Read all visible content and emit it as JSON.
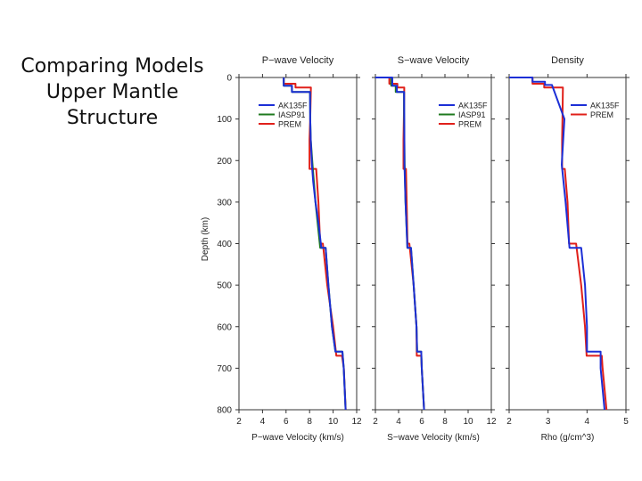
{
  "slide": {
    "title_lines": [
      "Comparing Models",
      "Upper Mantle",
      "Structure"
    ]
  },
  "colors": {
    "AK135F": "#1c2fd6",
    "IASP91": "#1f7a1f",
    "PREM": "#e0201a"
  },
  "chart_data": [
    {
      "type": "line",
      "title": "P−wave Velocity",
      "xlabel": "P−wave Velocity (km/s)",
      "ylabel": "Depth (km)",
      "xlim": [
        2,
        12
      ],
      "ylim": [
        800,
        0
      ],
      "x_ticks": [
        "2",
        "4",
        "6",
        "8",
        "10",
        "12"
      ],
      "y_ticks": [
        "0",
        "100",
        "200",
        "300",
        "400",
        "500",
        "600",
        "700",
        "800"
      ],
      "legend_position": "top-left",
      "series": [
        {
          "name": "AK135F",
          "color_key": "AK135F",
          "points": [
            [
              5.8,
              0
            ],
            [
              5.8,
              20
            ],
            [
              6.5,
              20
            ],
            [
              6.5,
              35
            ],
            [
              8.04,
              35
            ],
            [
              8.05,
              100
            ],
            [
              8.1,
              150
            ],
            [
              8.2,
              210
            ],
            [
              8.3,
              250
            ],
            [
              8.5,
              300
            ],
            [
              8.75,
              350
            ],
            [
              9.0,
              410
            ],
            [
              9.36,
              410
            ],
            [
              9.6,
              500
            ],
            [
              9.9,
              600
            ],
            [
              10.2,
              660
            ],
            [
              10.79,
              660
            ],
            [
              10.9,
              700
            ],
            [
              11.06,
              800
            ]
          ]
        },
        {
          "name": "IASP91",
          "color_key": "IASP91",
          "points": [
            [
              5.8,
              0
            ],
            [
              5.8,
              20
            ],
            [
              6.5,
              20
            ],
            [
              6.5,
              35
            ],
            [
              8.04,
              35
            ],
            [
              8.05,
              100
            ],
            [
              8.1,
              150
            ],
            [
              8.25,
              210
            ],
            [
              8.5,
              300
            ],
            [
              8.9,
              410
            ],
            [
              9.36,
              410
            ],
            [
              9.6,
              500
            ],
            [
              9.9,
              600
            ],
            [
              10.2,
              660
            ],
            [
              10.79,
              660
            ],
            [
              10.9,
              700
            ],
            [
              11.06,
              800
            ]
          ]
        },
        {
          "name": "PREM",
          "color_key": "PREM",
          "points": [
            [
              5.8,
              0
            ],
            [
              5.8,
              15
            ],
            [
              6.8,
              15
            ],
            [
              6.8,
              24
            ],
            [
              8.11,
              24
            ],
            [
              8.05,
              100
            ],
            [
              7.99,
              150
            ],
            [
              7.99,
              220
            ],
            [
              8.56,
              220
            ],
            [
              8.75,
              300
            ],
            [
              8.9,
              400
            ],
            [
              9.13,
              400
            ],
            [
              9.5,
              500
            ],
            [
              10.0,
              600
            ],
            [
              10.27,
              670
            ],
            [
              10.75,
              670
            ],
            [
              10.91,
              700
            ],
            [
              11.07,
              800
            ]
          ]
        }
      ]
    },
    {
      "type": "line",
      "title": "S−wave Velocity",
      "xlabel": "S−wave Velocity (km/s)",
      "ylabel": "",
      "xlim": [
        2,
        12
      ],
      "ylim": [
        800,
        0
      ],
      "x_ticks": [
        "2",
        "4",
        "6",
        "8",
        "10",
        "12"
      ],
      "y_ticks": [],
      "legend_position": "top-right",
      "series": [
        {
          "name": "AK135F",
          "color_key": "AK135F",
          "points": [
            [
              2.0,
              0
            ],
            [
              3.46,
              0
            ],
            [
              3.46,
              20
            ],
            [
              3.85,
              20
            ],
            [
              3.85,
              35
            ],
            [
              4.48,
              35
            ],
            [
              4.49,
              100
            ],
            [
              4.5,
              150
            ],
            [
              4.51,
              210
            ],
            [
              4.6,
              300
            ],
            [
              4.76,
              410
            ],
            [
              5.07,
              410
            ],
            [
              5.3,
              500
            ],
            [
              5.55,
              600
            ],
            [
              5.6,
              660
            ],
            [
              5.95,
              660
            ],
            [
              6.0,
              700
            ],
            [
              6.2,
              800
            ]
          ]
        },
        {
          "name": "IASP91",
          "color_key": "IASP91",
          "points": [
            [
              2.0,
              0
            ],
            [
              3.36,
              0
            ],
            [
              3.36,
              20
            ],
            [
              3.75,
              20
            ],
            [
              3.75,
              35
            ],
            [
              4.47,
              35
            ],
            [
              4.48,
              100
            ],
            [
              4.5,
              150
            ],
            [
              4.52,
              210
            ],
            [
              4.6,
              300
            ],
            [
              4.76,
              410
            ],
            [
              5.07,
              410
            ],
            [
              5.3,
              500
            ],
            [
              5.55,
              600
            ],
            [
              5.6,
              660
            ],
            [
              5.95,
              660
            ],
            [
              6.0,
              700
            ],
            [
              6.2,
              800
            ]
          ]
        },
        {
          "name": "PREM",
          "color_key": "PREM",
          "points": [
            [
              2.0,
              0
            ],
            [
              3.2,
              0
            ],
            [
              3.2,
              15
            ],
            [
              3.9,
              15
            ],
            [
              3.9,
              24
            ],
            [
              4.49,
              24
            ],
            [
              4.45,
              100
            ],
            [
              4.42,
              150
            ],
            [
              4.42,
              220
            ],
            [
              4.64,
              220
            ],
            [
              4.7,
              300
            ],
            [
              4.77,
              400
            ],
            [
              4.93,
              400
            ],
            [
              5.3,
              500
            ],
            [
              5.55,
              600
            ],
            [
              5.57,
              670
            ],
            [
              5.95,
              670
            ],
            [
              6.0,
              700
            ],
            [
              6.2,
              800
            ]
          ]
        }
      ]
    },
    {
      "type": "line",
      "title": "Density",
      "xlabel": "Rho (g/cm^3)",
      "ylabel": "",
      "xlim": [
        2,
        5
      ],
      "ylim": [
        800,
        0
      ],
      "x_ticks": [
        "2",
        "3",
        "4",
        "5"
      ],
      "y_ticks": [],
      "legend_position": "top-right",
      "series": [
        {
          "name": "AK135F",
          "color_key": "AK135F",
          "points": [
            [
              2.0,
              0
            ],
            [
              2.6,
              0
            ],
            [
              2.6,
              10
            ],
            [
              2.92,
              10
            ],
            [
              2.92,
              18
            ],
            [
              3.1,
              18
            ],
            [
              3.42,
              100
            ],
            [
              3.35,
              210
            ],
            [
              3.45,
              300
            ],
            [
              3.55,
              410
            ],
            [
              3.85,
              410
            ],
            [
              3.95,
              500
            ],
            [
              4.0,
              600
            ],
            [
              4.0,
              660
            ],
            [
              4.35,
              660
            ],
            [
              4.35,
              700
            ],
            [
              4.45,
              800
            ]
          ]
        },
        {
          "name": "PREM",
          "color_key": "PREM",
          "points": [
            [
              2.0,
              0
            ],
            [
              2.6,
              0
            ],
            [
              2.6,
              15
            ],
            [
              2.9,
              15
            ],
            [
              2.9,
              24
            ],
            [
              3.38,
              24
            ],
            [
              3.37,
              100
            ],
            [
              3.36,
              150
            ],
            [
              3.36,
              220
            ],
            [
              3.43,
              220
            ],
            [
              3.5,
              300
            ],
            [
              3.54,
              400
            ],
            [
              3.72,
              400
            ],
            [
              3.85,
              500
            ],
            [
              3.95,
              600
            ],
            [
              3.99,
              670
            ],
            [
              4.38,
              670
            ],
            [
              4.4,
              700
            ],
            [
              4.5,
              800
            ]
          ]
        }
      ]
    }
  ]
}
